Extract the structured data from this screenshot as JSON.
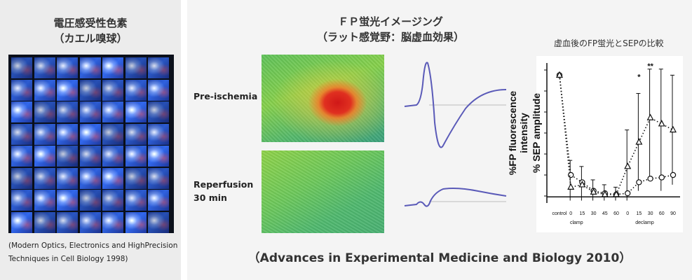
{
  "left": {
    "title_line1": "電圧感受性色素",
    "title_line2": "（カエル嗅球）",
    "caption_line1": "(Modern Optics, Electronics and HighPrecision",
    "caption_line2": "Techniques in Cell Biology 1998)"
  },
  "right": {
    "title_line1": "ＦＰ蛍光イメージング",
    "title_line2": "（ラット感覚野：脳虚血効果）",
    "chart_title": "虚血後のFP蛍光とSEPの比較",
    "label_pre": "Pre-ischemia",
    "label_reperf_line1": "Reperfusion",
    "label_reperf_line2": "30 min",
    "citation": "（Advances in Experimental Medicine and Biology 2010）"
  },
  "chart_data": {
    "type": "line",
    "title": "虚血後のFP蛍光とSEPの比較",
    "ylabel_line1": "%FP fluorescence",
    "ylabel_line2": "intensity",
    "ylabel_line3": "% SEP amplitude",
    "categories": [
      "control",
      "0",
      "15",
      "30",
      "45",
      "60",
      "0",
      "15",
      "30",
      "60",
      "90"
    ],
    "group_labels": [
      "clamp",
      "declamp"
    ],
    "ylim": [
      -5,
      110
    ],
    "series": [
      {
        "marker": "circle",
        "values": [
          100,
          18,
          12,
          5,
          3,
          2,
          3,
          12,
          15,
          16,
          18
        ]
      },
      {
        "marker": "triangle",
        "values": [
          100,
          8,
          10,
          4,
          2,
          2,
          25,
          45,
          65,
          60,
          55
        ]
      }
    ],
    "significance": [
      "*",
      "**"
    ]
  }
}
